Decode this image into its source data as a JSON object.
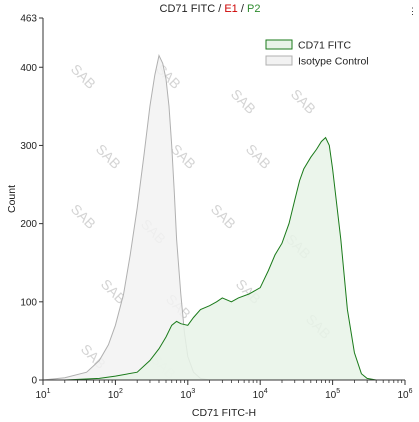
{
  "title": {
    "parts": [
      {
        "text": "CD71 FITC",
        "color": "#222222"
      },
      {
        "text": " / ",
        "color": "#222222"
      },
      {
        "text": "E1",
        "color": "#cc0000"
      },
      {
        "text": " / ",
        "color": "#222222"
      },
      {
        "text": "P2",
        "color": "#2e8b2e"
      }
    ]
  },
  "watermark": "SAB",
  "colors": {
    "cd71_line": "#1a7a1a",
    "cd71_fill": "#e8f3e8",
    "isotype_line": "#b0b0b0",
    "isotype_fill": "#f2f2f2",
    "axis": "#333333"
  },
  "chart_data": {
    "type": "area",
    "title": "CD71 FITC / E1 / P2",
    "xlabel": "CD71 FITC-H",
    "ylabel": "Count",
    "xscale": "log",
    "xlim": [
      10,
      1000000
    ],
    "ylim": [
      0,
      463
    ],
    "x_ticks": [
      {
        "base": "10",
        "exp": "1",
        "value": 10
      },
      {
        "base": "10",
        "exp": "2",
        "value": 100
      },
      {
        "base": "10",
        "exp": "3",
        "value": 1000
      },
      {
        "base": "10",
        "exp": "4",
        "value": 10000
      },
      {
        "base": "10",
        "exp": "5",
        "value": 100000
      },
      {
        "base": "10",
        "exp": "6",
        "value": 1000000
      }
    ],
    "y_ticks": [
      0,
      100,
      200,
      300,
      400,
      463
    ],
    "legend_position": "top-right",
    "series": [
      {
        "name": "CD71 FITC",
        "x": [
          20,
          60,
          100,
          200,
          300,
          400,
          500,
          600,
          700,
          800,
          1000,
          1200,
          1500,
          2000,
          2500,
          3000,
          4000,
          5000,
          7000,
          10000,
          13000,
          16000,
          20000,
          25000,
          30000,
          35000,
          40000,
          50000,
          60000,
          70000,
          80000,
          90000,
          100000,
          130000,
          160000,
          200000,
          250000,
          300000,
          400000
        ],
        "y": [
          0,
          2,
          5,
          10,
          25,
          40,
          55,
          70,
          75,
          72,
          70,
          80,
          90,
          95,
          100,
          105,
          100,
          105,
          110,
          118,
          140,
          160,
          175,
          200,
          230,
          255,
          270,
          285,
          295,
          305,
          310,
          300,
          270,
          180,
          90,
          35,
          8,
          2,
          0
        ]
      },
      {
        "name": "Isotype Control",
        "x": [
          10,
          20,
          40,
          60,
          80,
          100,
          130,
          160,
          200,
          250,
          300,
          350,
          400,
          450,
          500,
          550,
          600,
          650,
          700,
          800,
          900,
          1000,
          1200,
          1500,
          2000
        ],
        "y": [
          0,
          3,
          10,
          25,
          45,
          70,
          110,
          160,
          220,
          290,
          350,
          390,
          415,
          405,
          385,
          350,
          300,
          240,
          180,
          110,
          60,
          30,
          10,
          2,
          0
        ]
      }
    ]
  }
}
